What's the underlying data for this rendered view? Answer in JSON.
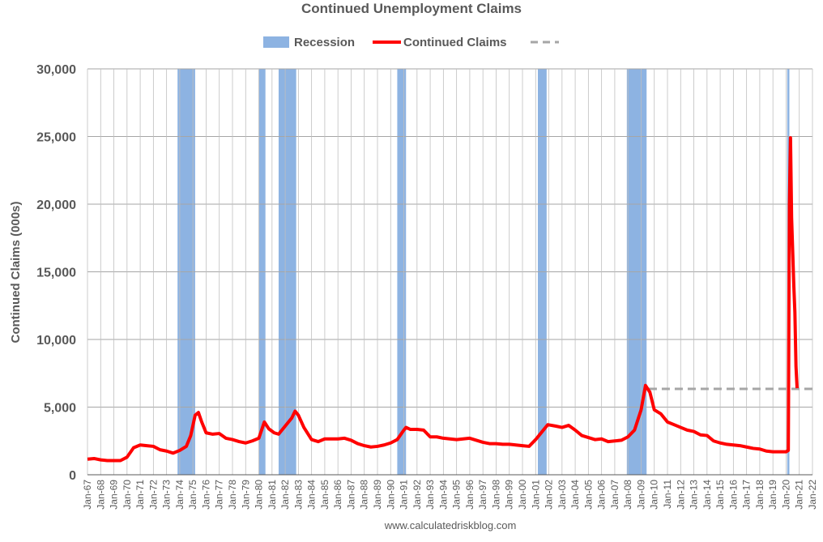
{
  "chart_data": {
    "type": "line",
    "title": "Continued Unemployment Claims",
    "y_label": "Continued Claims (000s)",
    "source": "www.calculatedriskblog.com",
    "grid": true,
    "xlim": [
      "1967-01",
      "2022-01"
    ],
    "xticks": [
      {
        "value": "1967-01",
        "label": "Jan-67"
      },
      {
        "value": "1968-01",
        "label": "Jan-68"
      },
      {
        "value": "1969-01",
        "label": "Jan-69"
      },
      {
        "value": "1970-01",
        "label": "Jan-70"
      },
      {
        "value": "1971-01",
        "label": "Jan-71"
      },
      {
        "value": "1972-01",
        "label": "Jan-72"
      },
      {
        "value": "1973-01",
        "label": "Jan-73"
      },
      {
        "value": "1974-01",
        "label": "Jan-74"
      },
      {
        "value": "1975-01",
        "label": "Jan-75"
      },
      {
        "value": "1976-01",
        "label": "Jan-76"
      },
      {
        "value": "1977-01",
        "label": "Jan-77"
      },
      {
        "value": "1978-01",
        "label": "Jan-78"
      },
      {
        "value": "1979-01",
        "label": "Jan-79"
      },
      {
        "value": "1980-01",
        "label": "Jan-80"
      },
      {
        "value": "1981-01",
        "label": "Jan-81"
      },
      {
        "value": "1982-01",
        "label": "Jan-82"
      },
      {
        "value": "1983-01",
        "label": "Jan-83"
      },
      {
        "value": "1984-01",
        "label": "Jan-84"
      },
      {
        "value": "1985-01",
        "label": "Jan-85"
      },
      {
        "value": "1986-01",
        "label": "Jan-86"
      },
      {
        "value": "1987-01",
        "label": "Jan-87"
      },
      {
        "value": "1988-01",
        "label": "Jan-88"
      },
      {
        "value": "1989-01",
        "label": "Jan-89"
      },
      {
        "value": "1990-01",
        "label": "Jan-90"
      },
      {
        "value": "1991-01",
        "label": "Jan-91"
      },
      {
        "value": "1992-01",
        "label": "Jan-92"
      },
      {
        "value": "1993-01",
        "label": "Jan-93"
      },
      {
        "value": "1994-01",
        "label": "Jan-94"
      },
      {
        "value": "1995-01",
        "label": "Jan-95"
      },
      {
        "value": "1996-01",
        "label": "Jan-96"
      },
      {
        "value": "1997-01",
        "label": "Jan-97"
      },
      {
        "value": "1998-01",
        "label": "Jan-98"
      },
      {
        "value": "1999-01",
        "label": "Jan-99"
      },
      {
        "value": "2000-01",
        "label": "Jan-00"
      },
      {
        "value": "2001-01",
        "label": "Jan-01"
      },
      {
        "value": "2002-01",
        "label": "Jan-02"
      },
      {
        "value": "2003-01",
        "label": "Jan-03"
      },
      {
        "value": "2004-01",
        "label": "Jan-04"
      },
      {
        "value": "2005-01",
        "label": "Jan-05"
      },
      {
        "value": "2006-01",
        "label": "Jan-06"
      },
      {
        "value": "2007-01",
        "label": "Jan-07"
      },
      {
        "value": "2008-01",
        "label": "Jan-08"
      },
      {
        "value": "2009-01",
        "label": "Jan-09"
      },
      {
        "value": "2010-01",
        "label": "Jan-10"
      },
      {
        "value": "2011-01",
        "label": "Jan-11"
      },
      {
        "value": "2012-01",
        "label": "Jan-12"
      },
      {
        "value": "2013-01",
        "label": "Jan-13"
      },
      {
        "value": "2014-01",
        "label": "Jan-14"
      },
      {
        "value": "2015-01",
        "label": "Jan-15"
      },
      {
        "value": "2016-01",
        "label": "Jan-16"
      },
      {
        "value": "2017-01",
        "label": "Jan-17"
      },
      {
        "value": "2018-01",
        "label": "Jan-18"
      },
      {
        "value": "2019-01",
        "label": "Jan-19"
      },
      {
        "value": "2020-01",
        "label": "Jan-20"
      },
      {
        "value": "2021-01",
        "label": "Jan-21"
      },
      {
        "value": "2022-01",
        "label": "Jan-22"
      }
    ],
    "ylim": [
      0,
      30000
    ],
    "yticks": [
      0,
      {
        "value": 5000,
        "label": "5,000"
      },
      {
        "value": 10000,
        "label": "10,000"
      },
      {
        "value": 15000,
        "label": "15,000"
      },
      {
        "value": 20000,
        "label": "20,000"
      },
      {
        "value": 25000,
        "label": "25,000"
      },
      {
        "value": 30000,
        "label": "30,000"
      }
    ],
    "recession": {
      "name": "Recession",
      "color": "#8db3e2",
      "periods": [
        [
          "1973-11",
          "1975-03"
        ],
        [
          "1980-01",
          "1980-07"
        ],
        [
          "1981-07",
          "1982-11"
        ],
        [
          "1990-07",
          "1991-03"
        ],
        [
          "2001-03",
          "2001-11"
        ],
        [
          "2007-12",
          "2009-06"
        ],
        [
          "2020-02",
          "2020-04"
        ]
      ]
    },
    "reference_line": {
      "color": "#a6a6a6",
      "value": 6350,
      "x": [
        "2009-08",
        "2022-01"
      ]
    },
    "series": [
      {
        "name": "Continued Claims",
        "color": "#ff0000",
        "x": [
          "1967-01",
          "1967-07",
          "1968-01",
          "1968-07",
          "1969-01",
          "1969-07",
          "1970-01",
          "1970-07",
          "1971-01",
          "1971-07",
          "1972-01",
          "1972-07",
          "1973-01",
          "1973-07",
          "1974-01",
          "1974-07",
          "1974-11",
          "1975-03",
          "1975-06",
          "1975-09",
          "1976-01",
          "1976-07",
          "1977-01",
          "1977-07",
          "1978-01",
          "1978-07",
          "1979-01",
          "1979-07",
          "1980-01",
          "1980-06",
          "1980-10",
          "1981-03",
          "1981-07",
          "1982-01",
          "1982-07",
          "1982-10",
          "1983-01",
          "1983-06",
          "1984-01",
          "1984-07",
          "1985-01",
          "1985-07",
          "1986-01",
          "1986-07",
          "1987-01",
          "1987-07",
          "1988-01",
          "1988-07",
          "1989-01",
          "1989-07",
          "1990-01",
          "1990-07",
          "1991-01",
          "1991-03",
          "1991-07",
          "1992-01",
          "1992-07",
          "1993-01",
          "1993-07",
          "1994-01",
          "1994-07",
          "1995-01",
          "1995-07",
          "1996-01",
          "1996-07",
          "1997-01",
          "1997-07",
          "1998-01",
          "1998-07",
          "1999-01",
          "1999-07",
          "2000-01",
          "2000-07",
          "2001-01",
          "2001-07",
          "2001-12",
          "2002-07",
          "2003-01",
          "2003-07",
          "2004-01",
          "2004-07",
          "2005-01",
          "2005-07",
          "2006-01",
          "2006-07",
          "2007-01",
          "2007-07",
          "2008-01",
          "2008-07",
          "2009-01",
          "2009-05",
          "2009-09",
          "2010-01",
          "2010-07",
          "2011-01",
          "2011-07",
          "2012-01",
          "2012-07",
          "2013-01",
          "2013-07",
          "2014-01",
          "2014-07",
          "2015-01",
          "2015-07",
          "2016-01",
          "2016-07",
          "2017-01",
          "2017-07",
          "2018-01",
          "2018-07",
          "2019-01",
          "2019-07",
          "2020-01",
          "2020-03",
          "2020-04",
          "2020-05",
          "2020-06",
          "2020-07",
          "2020-08",
          "2020-09",
          "2020-10",
          "2020-11"
        ],
        "values": [
          1150,
          1200,
          1100,
          1050,
          1050,
          1050,
          1300,
          2000,
          2200,
          2150,
          2100,
          1850,
          1750,
          1600,
          1800,
          2100,
          2900,
          4400,
          4600,
          3900,
          3100,
          3000,
          3050,
          2700,
          2600,
          2450,
          2350,
          2500,
          2700,
          3900,
          3400,
          3100,
          3000,
          3600,
          4200,
          4700,
          4400,
          3500,
          2600,
          2450,
          2650,
          2650,
          2650,
          2700,
          2550,
          2300,
          2150,
          2050,
          2100,
          2200,
          2350,
          2600,
          3300,
          3500,
          3350,
          3350,
          3300,
          2800,
          2800,
          2700,
          2650,
          2600,
          2650,
          2700,
          2550,
          2400,
          2300,
          2300,
          2250,
          2250,
          2200,
          2150,
          2100,
          2600,
          3200,
          3700,
          3600,
          3500,
          3650,
          3300,
          2900,
          2750,
          2600,
          2650,
          2450,
          2500,
          2550,
          2800,
          3300,
          4800,
          6600,
          6100,
          4800,
          4500,
          3900,
          3700,
          3500,
          3300,
          3200,
          2950,
          2900,
          2500,
          2350,
          2250,
          2200,
          2150,
          2050,
          1950,
          1900,
          1750,
          1700,
          1700,
          1700,
          1800,
          20000,
          24900,
          19000,
          16500,
          14000,
          12000,
          8000,
          6400
        ]
      }
    ]
  }
}
